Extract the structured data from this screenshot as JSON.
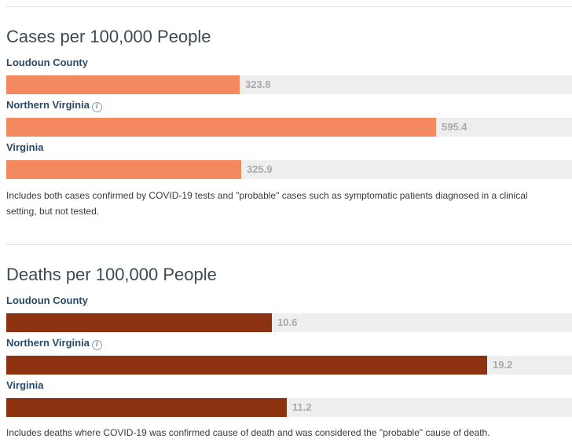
{
  "chart_data": [
    {
      "type": "bar",
      "title": "Cases per 100,000 People",
      "categories": [
        "Loudoun County",
        "Northern Virginia",
        "Virginia"
      ],
      "values": [
        323.8,
        595.4,
        325.9
      ],
      "value_labels": [
        "323.8",
        "595.4",
        "325.9"
      ],
      "info_icon": [
        false,
        true,
        false
      ],
      "xlim": [
        0,
        784
      ],
      "color": "#f4895f",
      "note": "Includes both cases confirmed by COVID-19 tests and \"probable\" cases such as symptomatic patients diagnosed in a clinical setting, but not tested."
    },
    {
      "type": "bar",
      "title": "Deaths per 100,000 People",
      "categories": [
        "Loudoun County",
        "Northern Virginia",
        "Virginia"
      ],
      "values": [
        10.6,
        19.2,
        11.2
      ],
      "value_labels": [
        "10.6",
        "19.2",
        "11.2"
      ],
      "info_icon": [
        false,
        true,
        false
      ],
      "xlim": [
        0,
        22.6
      ],
      "color": "#8c3210",
      "note": "Includes deaths where COVID-19 was confirmed cause of death and was considered the \"probable\" cause of death."
    }
  ]
}
